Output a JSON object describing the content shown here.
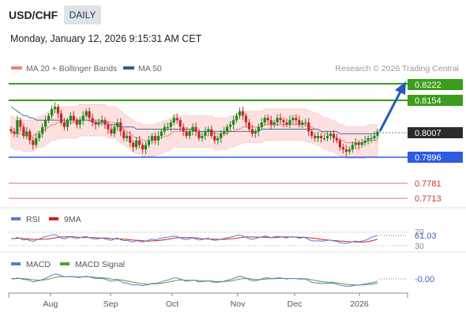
{
  "header": {
    "symbol": "USD/CHF",
    "timeframe_badge": "DAILY",
    "datetime": "Monday, January 12, 2026 9:15:31 AM CET"
  },
  "legend": {
    "ma20_bb": "MA 20 + Bollinger Bands",
    "ma50": "MA 50",
    "credit": "Research © 2026 Trading Central"
  },
  "colors": {
    "up_candle": "#1a8a1a",
    "down_candle": "#c62828",
    "bollinger_fill": "#fde0e0",
    "ma20": "#f08080",
    "ma50": "#4a6fa5",
    "resistance": "#3c9c1c",
    "pivot": "#2e5be0",
    "support": "#e06060",
    "arrow": "#2a5ab0",
    "rsi": "#5a7bd0",
    "rsi_ma": "#cc2222",
    "macd": "#5a7bd0",
    "macd_signal": "#4aa82a"
  },
  "levels": {
    "r2": "0.8222",
    "r1": "0.8154",
    "last": "0.8007",
    "pivot": "0.7896",
    "s1": "0.7781",
    "s2": "0.7713"
  },
  "rsi_panel": {
    "rsi_label": "RSI",
    "ma_label": "9MA",
    "tick_70": "70",
    "tick_30": "30",
    "value": "61.03"
  },
  "macd_panel": {
    "macd_label": "MACD",
    "signal_label": "MACD Signal",
    "value": "-0.00"
  },
  "chart_data": {
    "type": "candlestick",
    "title": "USD/CHF",
    "x_tick_labels": [
      "Aug",
      "Sep",
      "Oct",
      "Nov",
      "Dec",
      "2026"
    ],
    "ylim": [
      0.765,
      0.826
    ],
    "series": [
      {
        "name": "MA 20 + Bollinger Bands"
      },
      {
        "name": "MA 50"
      }
    ],
    "ohlc_close": [
      0.801,
      0.8,
      0.806,
      0.803,
      0.799,
      0.801,
      0.797,
      0.795,
      0.798,
      0.8,
      0.803,
      0.806,
      0.808,
      0.811,
      0.812,
      0.809,
      0.805,
      0.803,
      0.806,
      0.808,
      0.806,
      0.804,
      0.806,
      0.808,
      0.81,
      0.807,
      0.805,
      0.804,
      0.805,
      0.806,
      0.804,
      0.802,
      0.8,
      0.803,
      0.805,
      0.801,
      0.798,
      0.799,
      0.796,
      0.794,
      0.797,
      0.795,
      0.793,
      0.795,
      0.797,
      0.799,
      0.797,
      0.799,
      0.801,
      0.803,
      0.803,
      0.805,
      0.807,
      0.806,
      0.803,
      0.801,
      0.799,
      0.801,
      0.803,
      0.801,
      0.798,
      0.799,
      0.801,
      0.802,
      0.799,
      0.797,
      0.798,
      0.8,
      0.801,
      0.803,
      0.804,
      0.806,
      0.808,
      0.81,
      0.808,
      0.805,
      0.802,
      0.8,
      0.801,
      0.803,
      0.805,
      0.807,
      0.806,
      0.804,
      0.805,
      0.807,
      0.806,
      0.805,
      0.804,
      0.806,
      0.807,
      0.806,
      0.804,
      0.805,
      0.805,
      0.801,
      0.799,
      0.798,
      0.799,
      0.798,
      0.798,
      0.799,
      0.8,
      0.798,
      0.797,
      0.794,
      0.793,
      0.792,
      0.793,
      0.795,
      0.796,
      0.795,
      0.796,
      0.797,
      0.798,
      0.798,
      0.799,
      0.801
    ],
    "bollinger": {
      "ma20": [
        0.801,
        0.8,
        0.8,
        0.8,
        0.799,
        0.799,
        0.799,
        0.799,
        0.8,
        0.801,
        0.801,
        0.802,
        0.803,
        0.804,
        0.804,
        0.805,
        0.805,
        0.805,
        0.805,
        0.805,
        0.805,
        0.805,
        0.806,
        0.806,
        0.806,
        0.806,
        0.806,
        0.806,
        0.806,
        0.806,
        0.806,
        0.805,
        0.805,
        0.805,
        0.804,
        0.803,
        0.802,
        0.801,
        0.8,
        0.799,
        0.798,
        0.798,
        0.797,
        0.797,
        0.797,
        0.797,
        0.797,
        0.798,
        0.798,
        0.799,
        0.799,
        0.8,
        0.801,
        0.801,
        0.801,
        0.801,
        0.801,
        0.801,
        0.801,
        0.801,
        0.801,
        0.801,
        0.801,
        0.801,
        0.801,
        0.8,
        0.8,
        0.8,
        0.8,
        0.8,
        0.801,
        0.801,
        0.802,
        0.802,
        0.803,
        0.803,
        0.803,
        0.803,
        0.803,
        0.803,
        0.803,
        0.804,
        0.804,
        0.804,
        0.804,
        0.804,
        0.804,
        0.804,
        0.804,
        0.804,
        0.804,
        0.804,
        0.804,
        0.804,
        0.804,
        0.803,
        0.803,
        0.802,
        0.802,
        0.801,
        0.8,
        0.8,
        0.799,
        0.799,
        0.798,
        0.797,
        0.797,
        0.796,
        0.796,
        0.796,
        0.796,
        0.796,
        0.796,
        0.796,
        0.797,
        0.797,
        0.797,
        0.797
      ],
      "band_width": 0.007
    },
    "ma50": [
      0.812,
      0.811,
      0.81,
      0.809,
      0.808,
      0.808,
      0.807,
      0.807,
      0.806,
      0.806,
      0.806,
      0.806,
      0.806,
      0.806,
      0.806,
      0.806,
      0.806,
      0.806,
      0.806,
      0.806,
      0.806,
      0.806,
      0.806,
      0.806,
      0.806,
      0.806,
      0.805,
      0.805,
      0.805,
      0.805,
      0.805,
      0.804,
      0.804,
      0.804,
      0.804,
      0.803,
      0.803,
      0.803,
      0.803,
      0.803,
      0.802,
      0.802,
      0.802,
      0.802,
      0.802,
      0.802,
      0.802,
      0.802,
      0.802,
      0.802,
      0.802,
      0.802,
      0.802,
      0.802,
      0.802,
      0.802,
      0.802,
      0.802,
      0.802,
      0.801,
      0.801,
      0.801,
      0.801,
      0.801,
      0.801,
      0.801,
      0.801,
      0.801,
      0.801,
      0.801,
      0.801,
      0.801,
      0.801,
      0.801,
      0.801,
      0.801,
      0.801,
      0.801,
      0.801,
      0.801,
      0.802,
      0.802,
      0.802,
      0.802,
      0.802,
      0.802,
      0.802,
      0.802,
      0.802,
      0.802,
      0.802,
      0.802,
      0.802,
      0.802,
      0.802,
      0.802,
      0.802,
      0.802,
      0.802,
      0.801,
      0.801,
      0.801,
      0.801,
      0.801,
      0.801,
      0.8,
      0.8,
      0.8,
      0.8,
      0.8,
      0.8,
      0.8,
      0.8,
      0.8,
      0.8,
      0.8,
      0.8,
      0.8
    ],
    "rsi_values": [
      52,
      50,
      55,
      51,
      47,
      49,
      45,
      43,
      47,
      50,
      54,
      57,
      59,
      62,
      63,
      58,
      53,
      50,
      54,
      56,
      53,
      51,
      54,
      56,
      58,
      54,
      51,
      50,
      51,
      53,
      50,
      48,
      46,
      50,
      53,
      48,
      45,
      46,
      43,
      41,
      45,
      43,
      41,
      44,
      47,
      50,
      47,
      50,
      52,
      55,
      55,
      57,
      59,
      57,
      53,
      50,
      48,
      51,
      53,
      50,
      47,
      48,
      51,
      52,
      48,
      46,
      47,
      50,
      51,
      54,
      55,
      58,
      60,
      62,
      59,
      55,
      51,
      49,
      51,
      54,
      56,
      59,
      57,
      54,
      56,
      58,
      57,
      55,
      53,
      56,
      57,
      55,
      52,
      54,
      54,
      48,
      45,
      44,
      45,
      44,
      44,
      46,
      47,
      44,
      43,
      39,
      38,
      37,
      39,
      42,
      44,
      42,
      44,
      46,
      49,
      55,
      58,
      61
    ],
    "macd_values": [
      0.0005,
      0.0004,
      0.0006,
      0.0005,
      0.0003,
      0.0003,
      0.0001,
      -0.0001,
      0.0,
      0.0001,
      0.0003,
      0.0005,
      0.0008,
      0.0011,
      0.0013,
      0.0012,
      0.001,
      0.0008,
      0.0008,
      0.0009,
      0.0008,
      0.0007,
      0.0007,
      0.0008,
      0.0009,
      0.0008,
      0.0006,
      0.0005,
      0.0005,
      0.0005,
      0.0004,
      0.0002,
      0.0,
      0.0001,
      0.0002,
      0.0,
      -0.0003,
      -0.0003,
      -0.0005,
      -0.0007,
      -0.0006,
      -0.0007,
      -0.0008,
      -0.0007,
      -0.0006,
      -0.0004,
      -0.0004,
      -0.0003,
      -0.0001,
      0.0001,
      0.0002,
      0.0004,
      0.0006,
      0.0006,
      0.0004,
      0.0002,
      0.0,
      0.0001,
      0.0002,
      0.0001,
      -0.0001,
      -0.0001,
      0.0,
      0.0001,
      -0.0001,
      -0.0002,
      -0.0002,
      -0.0001,
      0.0,
      0.0002,
      0.0003,
      0.0005,
      0.0007,
      0.0009,
      0.0008,
      0.0006,
      0.0003,
      0.0001,
      0.0001,
      0.0002,
      0.0004,
      0.0006,
      0.0006,
      0.0005,
      0.0005,
      0.0006,
      0.0006,
      0.0005,
      0.0004,
      0.0005,
      0.0005,
      0.0005,
      0.0004,
      0.0004,
      0.0004,
      0.0001,
      -0.0002,
      -0.0003,
      -0.0003,
      -0.0004,
      -0.0004,
      -0.0004,
      -0.0003,
      -0.0004,
      -0.0005,
      -0.0007,
      -0.0008,
      -0.0009,
      -0.0009,
      -0.0008,
      -0.0007,
      -0.0007,
      -0.0006,
      -0.0005,
      -0.0004,
      -0.0003,
      -0.0002,
      0.0
    ],
    "forecast_target": 0.8222
  }
}
